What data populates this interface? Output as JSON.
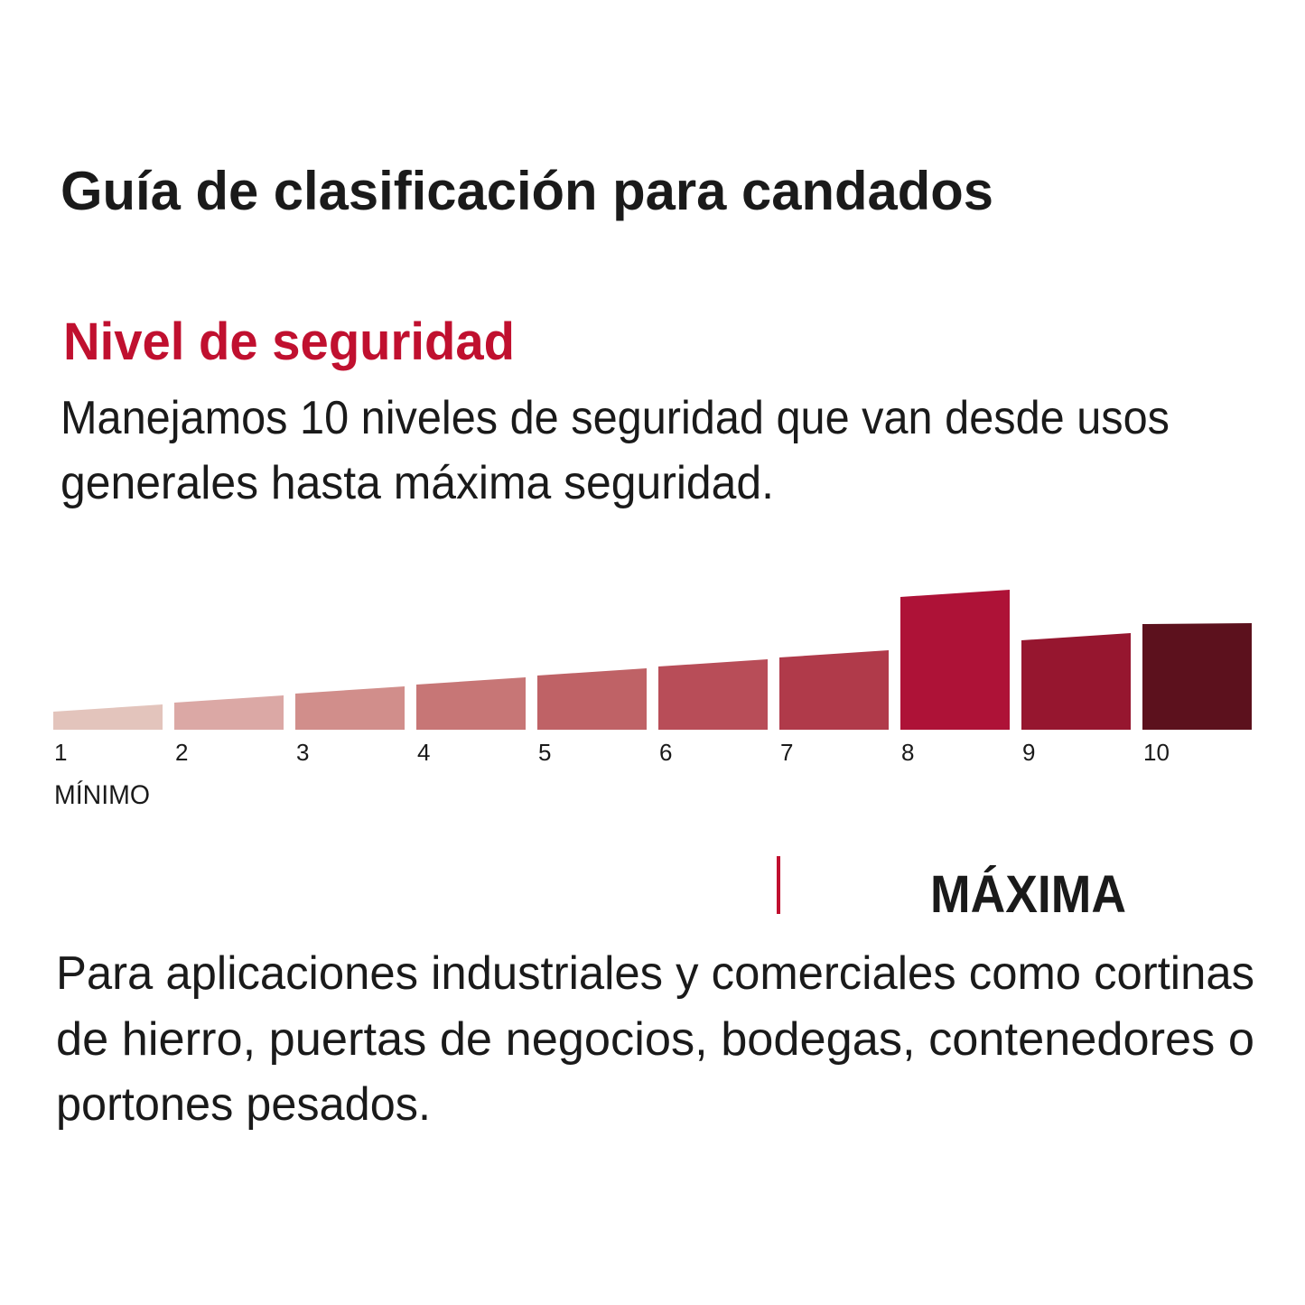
{
  "header": {
    "title": "Guía de clasificación para candados"
  },
  "section": {
    "title": "Nivel de seguridad",
    "description": [
      "Manejamos 10 niveles de seguridad que van desde usos",
      "generales hasta máxima seguridad."
    ]
  },
  "scale": {
    "labels": [
      "1",
      "2",
      "3",
      "4",
      "5",
      "6",
      "7",
      "8",
      "9",
      "10"
    ],
    "min_label": "MÍNIMO"
  },
  "level": {
    "title": "MÁXIMA",
    "description": [
      "Para aplicaciones industriales y comerciales como cortinas",
      "de hierro, puertas de negocios, bodegas, contenedores o",
      "portones pesados."
    ]
  }
}
